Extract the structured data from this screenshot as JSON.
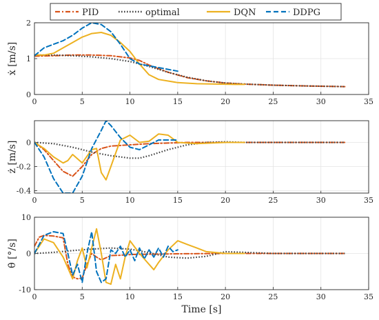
{
  "chart_data": {
    "type": "line",
    "legend": {
      "placement": "top-center",
      "entries": [
        {
          "name": "PID",
          "color": "#D95319",
          "style": "dashdot"
        },
        {
          "name": "optimal",
          "color": "#404040",
          "style": "dotted"
        },
        {
          "name": "DQN",
          "color": "#EDB120",
          "style": "solid"
        },
        {
          "name": "DDPG",
          "color": "#0072BD",
          "style": "dashed"
        }
      ]
    },
    "xlabel": "Time [s]",
    "xlim": [
      0,
      35
    ],
    "xticks": [
      "0",
      "5",
      "10",
      "15",
      "20",
      "25",
      "30",
      "35"
    ],
    "grid": true,
    "panels": [
      {
        "ylabel": "ẋ [m/s]",
        "ylim": [
          0,
          2
        ],
        "yticks": [
          "0",
          "1",
          "2"
        ],
        "series": [
          {
            "name": "PID",
            "x": [
              0,
              2,
              4,
              6,
              8,
              10,
              11,
              12,
              14,
              16,
              18,
              20,
              22,
              25,
              28,
              30,
              32.5
            ],
            "y": [
              1.07,
              1.08,
              1.1,
              1.1,
              1.08,
              1.02,
              0.95,
              0.82,
              0.62,
              0.47,
              0.38,
              0.32,
              0.29,
              0.26,
              0.24,
              0.23,
              0.22
            ]
          },
          {
            "name": "optimal",
            "x": [
              0,
              2,
              4,
              6,
              8,
              10,
              12,
              14,
              16,
              18,
              20,
              22,
              25,
              28,
              30,
              32.5
            ],
            "y": [
              1.1,
              1.1,
              1.08,
              1.05,
              1.0,
              0.92,
              0.78,
              0.62,
              0.48,
              0.38,
              0.32,
              0.29,
              0.26,
              0.24,
              0.23,
              0.22
            ]
          },
          {
            "name": "DQN",
            "x": [
              0,
              1,
              2,
              3,
              4,
              5,
              6,
              7,
              8,
              9,
              10,
              11,
              12,
              13,
              15,
              17,
              19,
              21,
              22
            ],
            "y": [
              1.1,
              1.1,
              1.15,
              1.3,
              1.45,
              1.6,
              1.7,
              1.73,
              1.65,
              1.45,
              1.2,
              0.85,
              0.55,
              0.42,
              0.33,
              0.3,
              0.29,
              0.28,
              0.28
            ]
          },
          {
            "name": "DDPG",
            "x": [
              0,
              1,
              2,
              3,
              4,
              5,
              6,
              7,
              8,
              9,
              10,
              11,
              12,
              13,
              14,
              15
            ],
            "y": [
              1.08,
              1.3,
              1.4,
              1.5,
              1.65,
              1.85,
              2.0,
              1.95,
              1.75,
              1.4,
              1.0,
              0.85,
              0.8,
              0.75,
              0.7,
              0.65
            ]
          }
        ]
      },
      {
        "ylabel": "ż [m/s]",
        "ylim": [
          -0.42,
          0.18
        ],
        "yticks": [
          "-0.4",
          "-0.2",
          "0"
        ],
        "series": [
          {
            "name": "PID",
            "x": [
              0,
              1,
              2,
              3,
              4,
              5,
              6,
              7,
              8,
              10,
              12,
              14,
              16,
              20,
              25,
              30,
              32.5
            ],
            "y": [
              0,
              -0.06,
              -0.15,
              -0.24,
              -0.28,
              -0.2,
              -0.1,
              -0.05,
              -0.03,
              -0.02,
              -0.01,
              -0.005,
              0,
              0,
              0,
              0,
              0
            ]
          },
          {
            "name": "optimal",
            "x": [
              0,
              2,
              4,
              6,
              8,
              10,
              11,
              12,
              14,
              16,
              18,
              20,
              22,
              25,
              30,
              32.5
            ],
            "y": [
              0,
              -0.01,
              -0.04,
              -0.08,
              -0.11,
              -0.13,
              -0.13,
              -0.11,
              -0.06,
              -0.02,
              0,
              0.005,
              0,
              0,
              0,
              0
            ]
          },
          {
            "name": "DQN",
            "x": [
              0,
              1,
              2,
              3,
              3.5,
              4,
              5,
              6,
              6.5,
              7,
              7.5,
              8,
              9,
              10,
              11,
              12,
              13,
              14,
              15,
              17,
              20,
              22
            ],
            "y": [
              0,
              -0.05,
              -0.12,
              -0.17,
              -0.15,
              -0.1,
              -0.17,
              -0.06,
              -0.05,
              -0.25,
              -0.31,
              -0.2,
              0.02,
              0.06,
              0.0,
              0.01,
              0.07,
              0.06,
              0.0,
              -0.01,
              0,
              0
            ]
          },
          {
            "name": "DDPG",
            "x": [
              0,
              1,
              2,
              3,
              4,
              5,
              6,
              7,
              7.5,
              8,
              9,
              10,
              11,
              12,
              13,
              14,
              15
            ],
            "y": [
              0,
              -0.12,
              -0.3,
              -0.42,
              -0.42,
              -0.28,
              -0.05,
              0.1,
              0.18,
              0.14,
              0.04,
              -0.04,
              -0.06,
              -0.02,
              0.02,
              0.02,
              0.02
            ]
          }
        ]
      },
      {
        "ylabel": "θ̇ [°/s]",
        "ylim": [
          -10,
          10
        ],
        "yticks": [
          "-10",
          "0",
          "10"
        ],
        "series": [
          {
            "name": "PID",
            "x": [
              0,
              0.5,
              1,
              2,
              3,
              3.5,
              4,
              4.5,
              5,
              5.5,
              6,
              6.5,
              7,
              7.5,
              8,
              9,
              10,
              12,
              15,
              20,
              25,
              30,
              32.5
            ],
            "y": [
              2,
              4.5,
              5,
              4.8,
              4.3,
              -3,
              -6.5,
              -7,
              -6.8,
              -3,
              0,
              -1,
              -1.8,
              -1.2,
              -0.6,
              -0.5,
              -0.3,
              -0.2,
              -0.1,
              0,
              0,
              0,
              0
            ]
          },
          {
            "name": "optimal",
            "x": [
              0,
              2,
              4,
              6,
              8,
              10,
              12,
              14,
              16,
              18,
              20,
              22,
              25,
              30,
              32.5
            ],
            "y": [
              0,
              0.3,
              0.8,
              1.2,
              1.5,
              1.2,
              0.2,
              -1.0,
              -1.3,
              -0.8,
              0.5,
              0.3,
              0,
              0,
              0
            ]
          },
          {
            "name": "DQN",
            "x": [
              0,
              1,
              2,
              3,
              4,
              4.5,
              5,
              5.5,
              6,
              6.5,
              7,
              7.5,
              8,
              8.5,
              9,
              9.5,
              10,
              11,
              12,
              12.5,
              13,
              14,
              15,
              16,
              17,
              18,
              20,
              22
            ],
            "y": [
              0,
              4,
              3,
              -1,
              -7,
              -2,
              1.5,
              -4,
              1.5,
              6.8,
              0,
              -8,
              -8.5,
              -3,
              -7,
              -1,
              3.5,
              0,
              -3,
              -4.5,
              -2.5,
              1,
              3.5,
              2.5,
              1.5,
              0.5,
              0,
              0
            ]
          },
          {
            "name": "DDPG",
            "x": [
              0,
              1,
              2,
              3,
              3.5,
              4,
              4.5,
              5,
              5.5,
              6,
              6.5,
              7,
              7.5,
              8,
              8.5,
              9,
              9.5,
              10,
              10.5,
              11,
              11.5,
              12,
              12.5,
              13,
              13.5,
              14,
              14.5,
              15
            ],
            "y": [
              0,
              5,
              6,
              5.5,
              0,
              -6,
              -3,
              -8,
              0,
              6,
              -5,
              -8,
              -7,
              1,
              0,
              2,
              -1,
              1,
              -2,
              1.5,
              -1.5,
              1,
              -1,
              1.5,
              -1,
              2,
              0.5,
              1
            ]
          }
        ]
      }
    ]
  }
}
